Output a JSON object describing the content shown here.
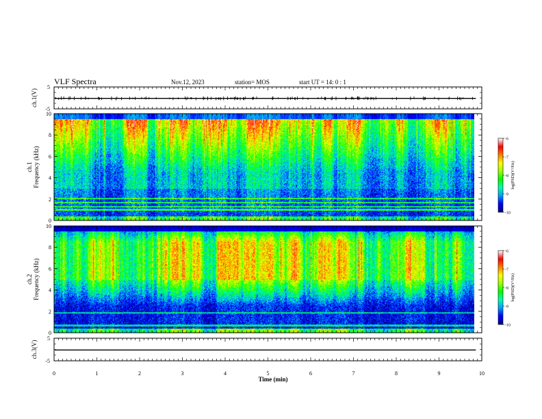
{
  "header": {
    "title": "VLF Spectra",
    "date": "Nov.12, 2023",
    "station": "station= MOS",
    "start": "start  UT =   14: 0  : 1"
  },
  "chart_data": [
    {
      "type": "line",
      "name": "ch1-waveform",
      "ylabel": "ch.1(V)",
      "ylim": [
        -5,
        5
      ],
      "yticks": [
        "5",
        "-5"
      ],
      "xlim": [
        0,
        10
      ],
      "level": -0.2
    },
    {
      "type": "heatmap",
      "name": "ch1-spectrogram",
      "ylabel": "ch.1\nFrequency (kHz)",
      "ylim": [
        0,
        10
      ],
      "yticks": [
        "10",
        "8",
        "6",
        "4",
        "2",
        "0"
      ],
      "xlim": [
        0,
        10
      ],
      "data_end_min": 9.83,
      "colorbar": {
        "label": "log(PSD)(V²/Hz)",
        "range": [
          -10,
          -6
        ],
        "ticks": [
          "-6",
          "-7",
          "-8",
          "-9",
          "-10"
        ]
      }
    },
    {
      "type": "heatmap",
      "name": "ch2-spectrogram",
      "ylabel": "ch.2\nFrequency (kHz)",
      "ylim": [
        0,
        10
      ],
      "yticks": [
        "10",
        "8",
        "6",
        "4",
        "2",
        "0"
      ],
      "xlim": [
        0,
        10
      ],
      "data_end_min": 9.83,
      "colorbar": {
        "label": "log(PSD)(V²/Hz)",
        "range": [
          -10,
          -6
        ],
        "ticks": [
          "-6",
          "-7",
          "-8",
          "-9",
          "-10"
        ]
      }
    },
    {
      "type": "line",
      "name": "ch3-waveform",
      "ylabel": "ch.3(V)",
      "ylim": [
        -5,
        5
      ],
      "yticks": [
        "5",
        "-5"
      ],
      "xlim": [
        0,
        10
      ],
      "level": -0.2
    }
  ],
  "xaxis": {
    "label": "Time  (min)",
    "ticks": [
      "0",
      "1",
      "2",
      "3",
      "4",
      "5",
      "6",
      "7",
      "8",
      "9",
      "10"
    ]
  },
  "colors": {
    "colormap": [
      "#00008a",
      "#0000ff",
      "#00a0ff",
      "#00ffb0",
      "#00ff00",
      "#a0ff00",
      "#ffff00",
      "#ff8000",
      "#ff0000",
      "#ffffff"
    ]
  }
}
